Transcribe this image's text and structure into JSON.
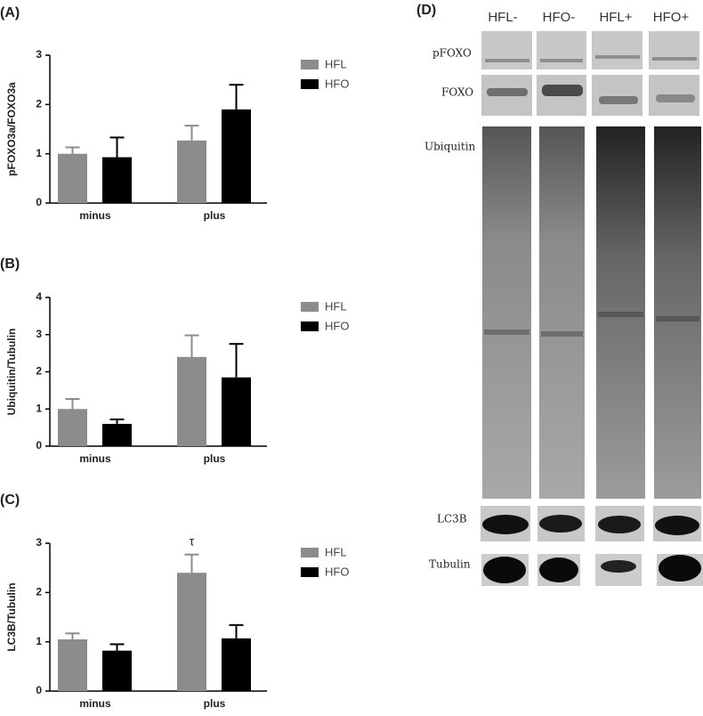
{
  "chart_data": [
    {
      "type": "bar",
      "panel_label": "(A)",
      "ylabel": "pFOXO3a/FOXO3a",
      "categories": [
        "minus",
        "plus"
      ],
      "series": [
        {
          "name": "HFL",
          "color": "#8c8c8e",
          "values": [
            1.0,
            1.27
          ],
          "errors": [
            0.13,
            0.3
          ]
        },
        {
          "name": "HFO",
          "color": "#000000",
          "values": [
            0.93,
            1.9
          ],
          "errors": [
            0.4,
            0.5
          ]
        }
      ],
      "ylim": [
        0,
        3
      ],
      "yticks": [
        0,
        1,
        2,
        3
      ]
    },
    {
      "type": "bar",
      "panel_label": "(B)",
      "ylabel": "Ubiquitin/Tubulin",
      "categories": [
        "minus",
        "plus"
      ],
      "series": [
        {
          "name": "HFL",
          "color": "#8c8c8e",
          "values": [
            1.0,
            2.4
          ],
          "errors": [
            0.27,
            0.58
          ]
        },
        {
          "name": "HFO",
          "color": "#000000",
          "values": [
            0.6,
            1.85
          ],
          "errors": [
            0.12,
            0.9
          ]
        }
      ],
      "ylim": [
        0,
        4
      ],
      "yticks": [
        0,
        1,
        2,
        3,
        4
      ]
    },
    {
      "type": "bar",
      "panel_label": "(C)",
      "ylabel": "LC3B/Tubulin",
      "categories": [
        "minus",
        "plus"
      ],
      "series": [
        {
          "name": "HFL",
          "color": "#8c8c8e",
          "values": [
            1.05,
            2.4
          ],
          "errors": [
            0.12,
            0.37
          ]
        },
        {
          "name": "HFO",
          "color": "#000000",
          "values": [
            0.82,
            1.07
          ],
          "errors": [
            0.13,
            0.27
          ]
        }
      ],
      "ylim": [
        0,
        3
      ],
      "yticks": [
        0,
        1,
        2,
        3
      ],
      "annotations": [
        "τ"
      ]
    }
  ],
  "blot": {
    "panel_label": "(D)",
    "lanes": [
      "HFL-",
      "HFO-",
      "HFL+",
      "HFO+"
    ],
    "rows": [
      "pFOXO",
      "FOXO",
      "Ubiquitin",
      "LC3B",
      "Tubulin"
    ]
  }
}
